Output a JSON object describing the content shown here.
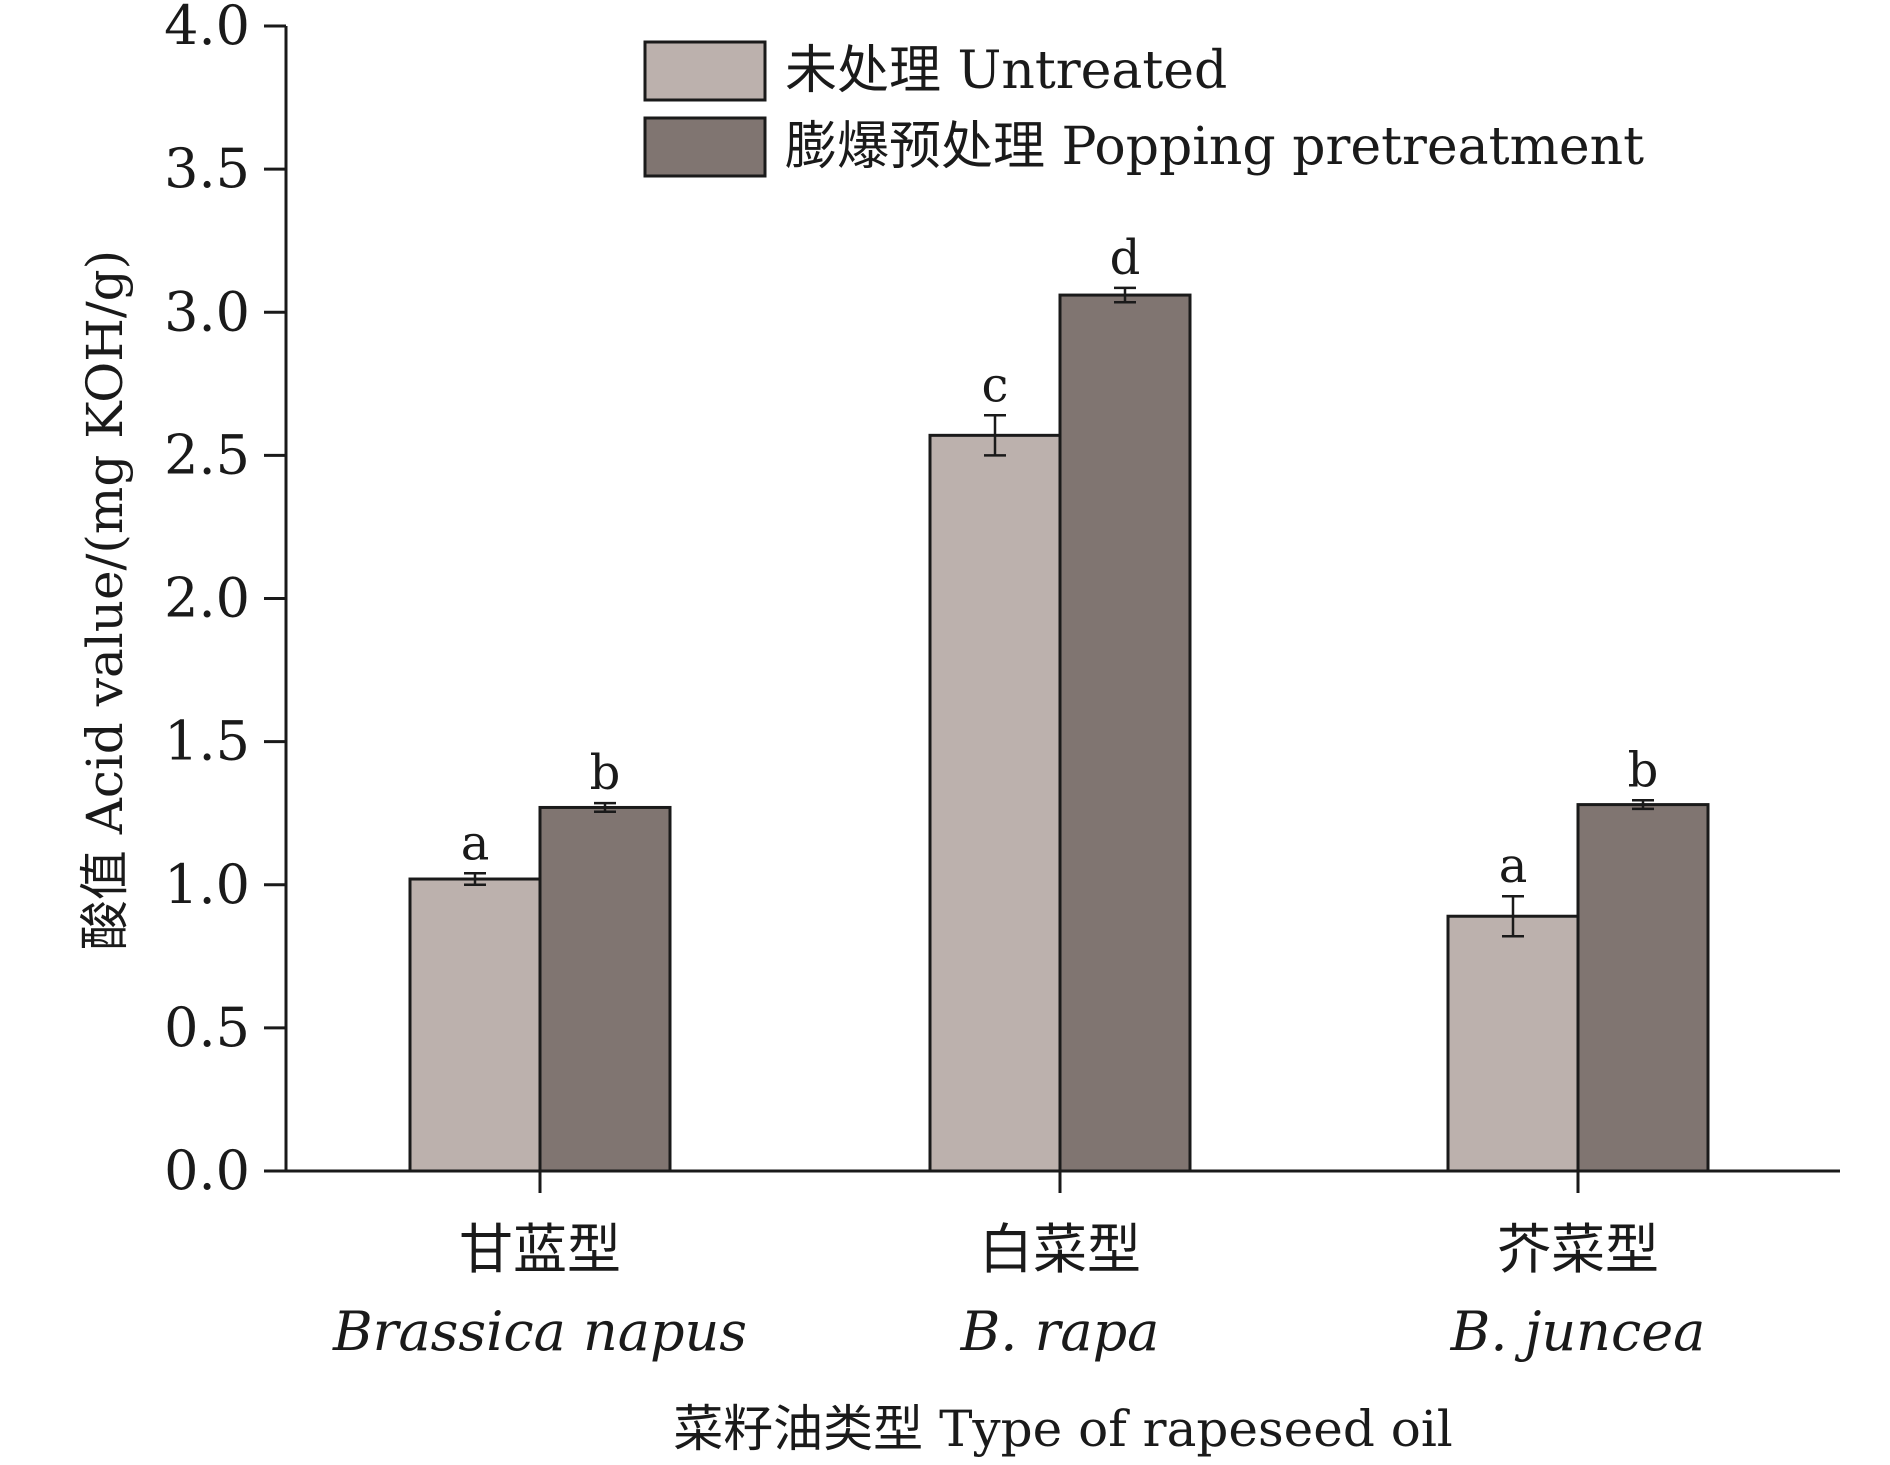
{
  "chart_data": {
    "type": "bar",
    "categories": [
      {
        "cn": "甘蓝型",
        "latin": "Brassica napus"
      },
      {
        "cn": "白菜型",
        "latin": "B. rapa"
      },
      {
        "cn": "芥菜型",
        "latin": "B. juncea"
      }
    ],
    "series": [
      {
        "name": "未处理 Untreated",
        "color": "#bcb1ad",
        "values": [
          1.02,
          2.57,
          0.89
        ],
        "errors": [
          0.02,
          0.07,
          0.07
        ],
        "significance": [
          "a",
          "c",
          "a"
        ]
      },
      {
        "name": "膨爆预处理 Popping pretreatment",
        "color": "#807571",
        "values": [
          1.27,
          3.06,
          1.28
        ],
        "errors": [
          0.015,
          0.025,
          0.015
        ],
        "significance": [
          "b",
          "d",
          "b"
        ]
      }
    ],
    "ylabel": "酸值 Acid value/(mg KOH/g)",
    "xlabel": "菜籽油类型 Type of rapeseed oil",
    "ylim": [
      0,
      4.0
    ],
    "yticks": [
      "0.0",
      "0.5",
      "1.0",
      "1.5",
      "2.0",
      "2.5",
      "3.0",
      "3.5",
      "4.0"
    ],
    "grid": false,
    "legend_position": "top-center"
  }
}
